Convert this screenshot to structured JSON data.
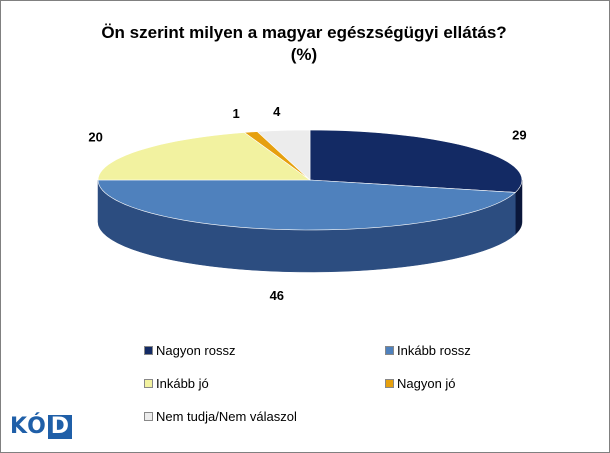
{
  "chart_data": {
    "type": "pie",
    "title_line1": "Ön szerint milyen a magyar egészségügyi ellátás?",
    "title_line2": "(%)",
    "categories": [
      "Nagyon rossz",
      "Inkább rossz",
      "Inkább jó",
      "Nagyon jó",
      "Nem tudja/Nem válaszol"
    ],
    "values": [
      29,
      46,
      20,
      1,
      4
    ],
    "colors": [
      "#132a64",
      "#4f81bd",
      "#f2f2a0",
      "#e6a00e",
      "#ececec"
    ],
    "side_colors": [
      "#0a173a",
      "#2c4d80",
      "#b9b86c",
      "#a66e00",
      "#b5b5b5"
    ],
    "legend_placement": "bottom"
  },
  "logo": {
    "text_k": "K",
    "text_o": "Ó",
    "text_d": "D"
  }
}
